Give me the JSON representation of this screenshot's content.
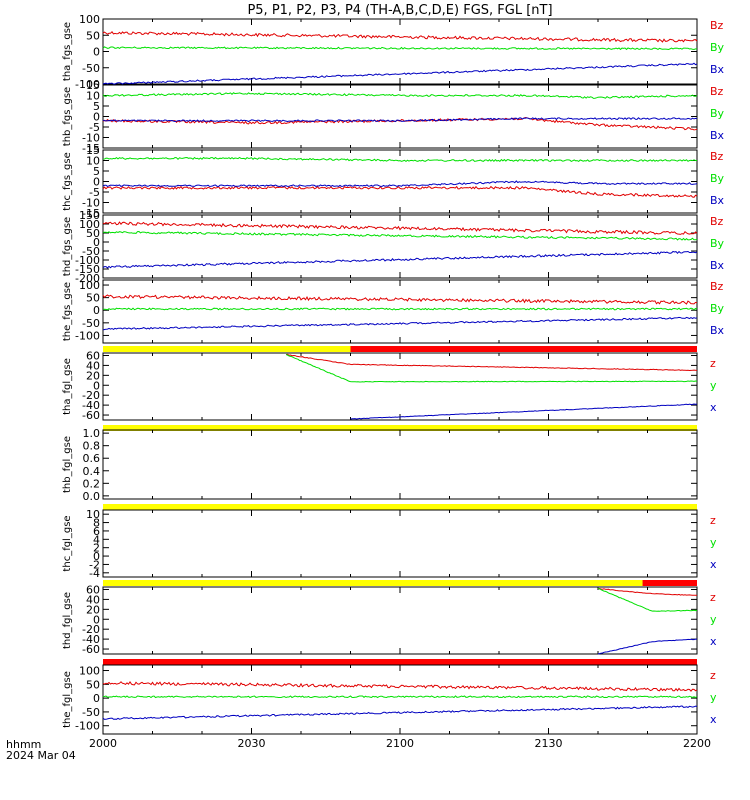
{
  "title": "P5, P1, P2, P3, P4 (TH-A,B,C,D,E) FGS, FGL [nT]",
  "colors": {
    "bz": "#e00000",
    "by": "#00e000",
    "bx": "#0000c0",
    "flag_yellow": "#ffff00",
    "flag_red": "#ff0000",
    "frame": "#000000"
  },
  "footer": {
    "hhmm": "hhmm",
    "date": "2024 Mar 04"
  },
  "chart_data": {
    "type": "line",
    "x_ticks": [
      "2000",
      "2030",
      "2100",
      "2130",
      "2200"
    ],
    "x_range_minutes": [
      0,
      120
    ],
    "panels": [
      {
        "ylabel": "tha_fgs_gse",
        "ylim": [
          -100,
          100
        ],
        "yticks": [
          "100",
          "50",
          "0",
          "-50",
          "-100"
        ],
        "yvals": [
          100,
          50,
          0,
          -50,
          -100
        ],
        "legend": [
          "Bz",
          "By",
          "Bx"
        ],
        "series": [
          {
            "name": "Bz",
            "color": "bz",
            "noise": 1.5,
            "x": [
              0,
              120
            ],
            "y": [
              58,
              32
            ]
          },
          {
            "name": "By",
            "color": "by",
            "noise": 0.8,
            "x": [
              0,
              120
            ],
            "y": [
              12,
              8
            ]
          },
          {
            "name": "Bx",
            "color": "bx",
            "noise": 0.8,
            "x": [
              0,
              120
            ],
            "y": [
              -100,
              -38
            ]
          }
        ]
      },
      {
        "ylabel": "thb_fgs_gse",
        "ylim": [
          -15,
          15
        ],
        "yticks": [
          "15",
          "10",
          "5",
          "0",
          "-5",
          "-10",
          "-15"
        ],
        "yvals": [
          15,
          10,
          5,
          0,
          -5,
          -10,
          -15
        ],
        "legend": [
          "Bz",
          "By",
          "Bx"
        ],
        "series": [
          {
            "name": "Bz",
            "color": "bz",
            "noise": 1.2,
            "x": [
              0,
              30,
              60,
              85,
              100,
              120
            ],
            "y": [
              -2,
              -3,
              -2,
              -1,
              -4,
              -6
            ]
          },
          {
            "name": "By",
            "color": "by",
            "noise": 0.9,
            "x": [
              0,
              30,
              60,
              85,
              100,
              120
            ],
            "y": [
              10,
              11,
              10,
              10,
              9,
              10
            ]
          },
          {
            "name": "Bx",
            "color": "bx",
            "noise": 0.8,
            "x": [
              0,
              30,
              60,
              85,
              100,
              120
            ],
            "y": [
              -2,
              -2,
              -2,
              -1,
              -1,
              -1
            ]
          }
        ]
      },
      {
        "ylabel": "thc_fgs_gse",
        "ylim": [
          -15,
          15
        ],
        "yticks": [
          "15",
          "10",
          "5",
          "0",
          "-5",
          "-10",
          "-15"
        ],
        "yvals": [
          15,
          10,
          5,
          0,
          -5,
          -10,
          -15
        ],
        "legend": [
          "Bz",
          "By",
          "Bx"
        ],
        "series": [
          {
            "name": "Bz",
            "color": "bz",
            "noise": 1.2,
            "x": [
              0,
              30,
              60,
              85,
              100,
              120
            ],
            "y": [
              -3,
              -3,
              -3,
              -3,
              -6,
              -7
            ]
          },
          {
            "name": "By",
            "color": "by",
            "noise": 0.9,
            "x": [
              0,
              30,
              60,
              85,
              100,
              120
            ],
            "y": [
              11,
              11,
              10,
              10,
              10,
              10
            ]
          },
          {
            "name": "Bx",
            "color": "bx",
            "noise": 0.8,
            "x": [
              0,
              30,
              60,
              85,
              100,
              120
            ],
            "y": [
              -2,
              -2,
              -2,
              0,
              -1,
              -1
            ]
          }
        ]
      },
      {
        "ylabel": "thd_fgs_gse",
        "ylim": [
          -200,
          150
        ],
        "yticks": [
          "150",
          "100",
          "50",
          "0",
          "-50",
          "-100",
          "-150",
          "-200"
        ],
        "yvals": [
          150,
          100,
          50,
          0,
          -50,
          -100,
          -150,
          -200
        ],
        "legend": [
          "Bz",
          "By",
          "Bx"
        ],
        "series": [
          {
            "name": "Bz",
            "color": "bz",
            "noise": 1.5,
            "x": [
              0,
              120
            ],
            "y": [
              105,
              48
            ]
          },
          {
            "name": "By",
            "color": "by",
            "noise": 1.0,
            "x": [
              0,
              120
            ],
            "y": [
              55,
              15
            ]
          },
          {
            "name": "Bx",
            "color": "bx",
            "noise": 1.0,
            "x": [
              0,
              120
            ],
            "y": [
              -140,
              -55
            ]
          }
        ]
      },
      {
        "ylabel": "the_fgs_gse",
        "ylim": [
          -130,
          120
        ],
        "yticks": [
          "100",
          "50",
          "0",
          "-50",
          "-100"
        ],
        "yvals": [
          100,
          50,
          0,
          -50,
          -100
        ],
        "legend": [
          "Bz",
          "By",
          "Bx"
        ],
        "series": [
          {
            "name": "Bz",
            "color": "bz",
            "noise": 1.5,
            "x": [
              0,
              120
            ],
            "y": [
              55,
              30
            ]
          },
          {
            "name": "By",
            "color": "by",
            "noise": 0.8,
            "x": [
              0,
              120
            ],
            "y": [
              5,
              5
            ]
          },
          {
            "name": "Bx",
            "color": "bx",
            "noise": 0.8,
            "x": [
              0,
              120
            ],
            "y": [
              -75,
              -30
            ]
          }
        ]
      },
      {
        "ylabel": "tha_fgl_gse",
        "ylim": [
          -70,
          65
        ],
        "yticks": [
          "60",
          "40",
          "20",
          "0",
          "-20",
          "-40",
          "-60"
        ],
        "yvals": [
          60,
          40,
          20,
          0,
          -20,
          -40,
          -60
        ],
        "legend": [
          "z",
          "y",
          "x"
        ],
        "flag": [
          {
            "from": 0,
            "to": 50,
            "color": "flag_yellow"
          },
          {
            "from": 50,
            "to": 120,
            "color": "flag_red"
          }
        ],
        "series": [
          {
            "name": "z",
            "color": "bz",
            "noise": 0.3,
            "x": [
              37,
              50,
              120
            ],
            "y": [
              62,
              42,
              30
            ]
          },
          {
            "name": "y",
            "color": "by",
            "noise": 0.3,
            "x": [
              37,
              50,
              120
            ],
            "y": [
              62,
              7,
              8
            ]
          },
          {
            "name": "x",
            "color": "bx",
            "noise": 0.3,
            "x": [
              50,
              120
            ],
            "y": [
              -68,
              -38
            ]
          }
        ]
      },
      {
        "ylabel": "thb_fgl_gse",
        "ylim": [
          -0.05,
          1.05
        ],
        "yticks": [
          "1.0",
          "0.8",
          "0.6",
          "0.4",
          "0.2",
          "0.0"
        ],
        "yvals": [
          1.0,
          0.8,
          0.6,
          0.4,
          0.2,
          0.0
        ],
        "legend": [],
        "flag": [
          {
            "from": 0,
            "to": 120,
            "color": "flag_yellow"
          }
        ],
        "series": []
      },
      {
        "ylabel": "thc_fgl_gse",
        "ylim": [
          -5,
          11
        ],
        "yticks": [
          "10",
          "8",
          "6",
          "4",
          "2",
          "0",
          "-2",
          "-4"
        ],
        "yvals": [
          10,
          8,
          6,
          4,
          2,
          0,
          -2,
          -4
        ],
        "legend": [
          "z",
          "y",
          "x"
        ],
        "flag": [
          {
            "from": 0,
            "to": 120,
            "color": "flag_yellow"
          }
        ],
        "series": []
      },
      {
        "ylabel": "thd_fgl_gse",
        "ylim": [
          -70,
          65
        ],
        "yticks": [
          "60",
          "40",
          "20",
          "0",
          "-20",
          "-40",
          "-60"
        ],
        "yvals": [
          60,
          40,
          20,
          0,
          -20,
          -40,
          -60
        ],
        "legend": [
          "z",
          "y",
          "x"
        ],
        "flag": [
          {
            "from": 0,
            "to": 109,
            "color": "flag_yellow"
          },
          {
            "from": 109,
            "to": 120,
            "color": "flag_red"
          }
        ],
        "series": [
          {
            "name": "z",
            "color": "bz",
            "noise": 0.3,
            "x": [
              100,
              110,
              120
            ],
            "y": [
              62,
              52,
              48
            ]
          },
          {
            "name": "y",
            "color": "by",
            "noise": 0.3,
            "x": [
              100,
              111,
              120
            ],
            "y": [
              62,
              16,
              18
            ]
          },
          {
            "name": "x",
            "color": "bx",
            "noise": 0.3,
            "x": [
              100,
              111,
              120
            ],
            "y": [
              -70,
              -45,
              -40
            ]
          }
        ]
      },
      {
        "ylabel": "the_fgl_gse",
        "ylim": [
          -130,
          120
        ],
        "yticks": [
          "100",
          "50",
          "0",
          "-50",
          "-100"
        ],
        "yvals": [
          100,
          50,
          0,
          -50,
          -100
        ],
        "legend": [
          "z",
          "y",
          "x"
        ],
        "flag": [
          {
            "from": 0,
            "to": 120,
            "color": "flag_red"
          }
        ],
        "series": [
          {
            "name": "z",
            "color": "bz",
            "noise": 1.5,
            "x": [
              0,
              120
            ],
            "y": [
              55,
              30
            ]
          },
          {
            "name": "y",
            "color": "by",
            "noise": 0.8,
            "x": [
              0,
              120
            ],
            "y": [
              5,
              5
            ]
          },
          {
            "name": "x",
            "color": "bx",
            "noise": 0.8,
            "x": [
              0,
              120
            ],
            "y": [
              -75,
              -30
            ]
          }
        ]
      }
    ]
  }
}
